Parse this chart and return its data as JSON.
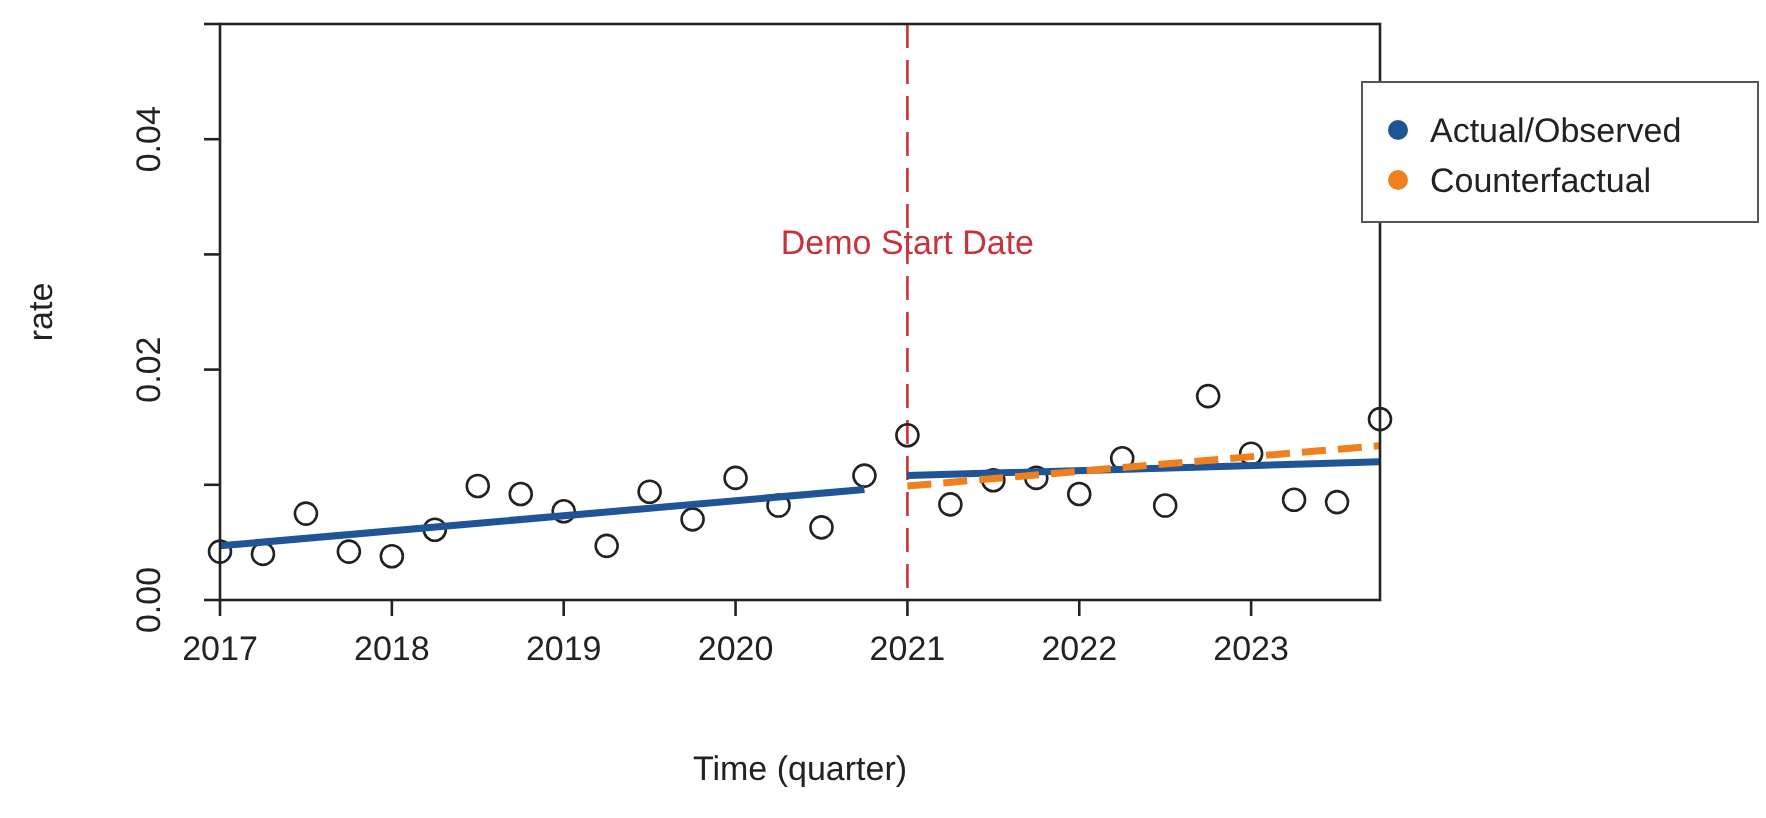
{
  "chart_data": {
    "type": "scatter",
    "xlabel": "Time (quarter)",
    "ylabel": "rate",
    "xlim": [
      2017,
      2023.75
    ],
    "xticks": [
      2017,
      2018,
      2019,
      2020,
      2021,
      2022,
      2023
    ],
    "ylim": [
      0,
      0.05
    ],
    "yticks": [
      {
        "value": 0,
        "label": "0.00"
      },
      {
        "value": 0.01,
        "label": null
      },
      {
        "value": 0.02,
        "label": "0.02"
      },
      {
        "value": 0.03,
        "label": null
      },
      {
        "value": 0.04,
        "label": "0.04"
      },
      {
        "value": 0.05,
        "label": null
      }
    ],
    "grid": false,
    "legend": "right",
    "series": [
      {
        "marker": "circle",
        "color": "#222222",
        "x": [
          2017,
          2017.25,
          2017.5,
          2017.75,
          2018,
          2018.25,
          2018.5,
          2018.75,
          2019,
          2019.25,
          2019.5,
          2019.75,
          2020,
          2020.25,
          2020.5,
          2020.75,
          2021,
          2021.25,
          2021.5,
          2021.75,
          2022,
          2022.25,
          2022.5,
          2022.75,
          2023,
          2023.25,
          2023.5,
          2023.75
        ],
        "values": [
          0.0042,
          0.004,
          0.0075,
          0.0042,
          0.0038,
          0.0061,
          0.0099,
          0.0092,
          0.0077,
          0.0047,
          0.0094,
          0.007,
          0.0106,
          0.0082,
          0.0063,
          0.0108,
          0.0143,
          0.0083,
          0.0104,
          0.0106,
          0.0092,
          0.0123,
          0.0082,
          0.0177,
          0.0127,
          0.0087,
          0.0085,
          0.0157
        ]
      },
      {
        "type": "line",
        "name": "Actual/Observed",
        "color": "#1f5596",
        "line_style": "solid",
        "marker": "none",
        "x": [
          2017,
          2020.75,
          2020.875,
          2021,
          2023.75
        ],
        "values": [
          0.0047,
          0.0096,
          null,
          0.0108,
          0.012
        ]
      },
      {
        "type": "line",
        "name": "Counterfactual",
        "color": "#f07f1e",
        "line_style": "dashed",
        "marker": "none",
        "x": [
          2021,
          2023.75
        ],
        "values": [
          0.0099,
          0.0134
        ]
      }
    ],
    "ref_lines": [
      {
        "axis": "x",
        "value": 2021,
        "label": "Demo Start Date",
        "color": "#c8323c",
        "line_style": "dashed"
      }
    ]
  }
}
